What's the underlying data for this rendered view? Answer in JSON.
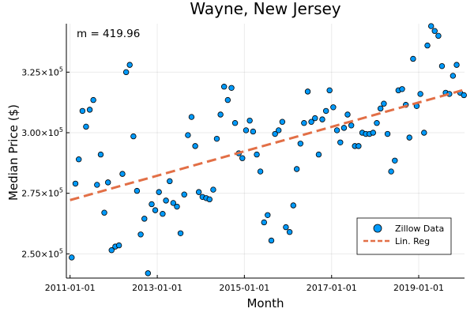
{
  "chart_data": {
    "type": "scatter",
    "title": "Wayne, New Jersey",
    "xlabel": "Month",
    "ylabel": "Median Price ($)",
    "annotation": "m = 419.96",
    "grid": true,
    "legend_position": "bottom-right",
    "xlim": [
      "2010-12-01",
      "2020-01-20"
    ],
    "ylim": [
      240000,
      345000
    ],
    "x_ticks": [
      {
        "date": "2011-01-01",
        "label": "2011-01-01"
      },
      {
        "date": "2013-01-01",
        "label": "2013-01-01"
      },
      {
        "date": "2015-01-01",
        "label": "2015-01-01"
      },
      {
        "date": "2017-01-01",
        "label": "2017-01-01"
      },
      {
        "date": "2019-01-01",
        "label": "2019-01-01"
      }
    ],
    "y_ticks": [
      {
        "value": 250000,
        "mantissa": "2.50",
        "exponent": "5"
      },
      {
        "value": 275000,
        "mantissa": "2.75",
        "exponent": "5"
      },
      {
        "value": 300000,
        "mantissa": "3.00",
        "exponent": "5"
      },
      {
        "value": 325000,
        "mantissa": "3.25",
        "exponent": "5"
      }
    ],
    "tick_times": "×10",
    "series": [
      {
        "name": "Zillow Data",
        "kind": "scatter",
        "color": "#009AFA",
        "points": [
          [
            "2011-01",
            248500
          ],
          [
            "2011-02",
            279000
          ],
          [
            "2011-03",
            289000
          ],
          [
            "2011-04",
            309000
          ],
          [
            "2011-05",
            302500
          ],
          [
            "2011-06",
            309500
          ],
          [
            "2011-07",
            313500
          ],
          [
            "2011-08",
            278500
          ],
          [
            "2011-09",
            291000
          ],
          [
            "2011-10",
            267000
          ],
          [
            "2011-11",
            279500
          ],
          [
            "2011-12",
            251500
          ],
          [
            "2012-01",
            253000
          ],
          [
            "2012-02",
            253500
          ],
          [
            "2012-03",
            283000
          ],
          [
            "2012-04",
            325000
          ],
          [
            "2012-05",
            328000
          ],
          [
            "2012-06",
            298500
          ],
          [
            "2012-07",
            276000
          ],
          [
            "2012-08",
            258000
          ],
          [
            "2012-09",
            264500
          ],
          [
            "2012-10",
            242000
          ],
          [
            "2012-11",
            270500
          ],
          [
            "2012-12",
            268000
          ],
          [
            "2013-01",
            275500
          ],
          [
            "2013-02",
            266500
          ],
          [
            "2013-03",
            272000
          ],
          [
            "2013-04",
            280000
          ],
          [
            "2013-05",
            271000
          ],
          [
            "2013-06",
            269500
          ],
          [
            "2013-07",
            258500
          ],
          [
            "2013-08",
            274500
          ],
          [
            "2013-09",
            299000
          ],
          [
            "2013-10",
            306500
          ],
          [
            "2013-11",
            294500
          ],
          [
            "2013-12",
            275500
          ],
          [
            "2014-01",
            273500
          ],
          [
            "2014-02",
            273000
          ],
          [
            "2014-03",
            272500
          ],
          [
            "2014-04",
            276500
          ],
          [
            "2014-05",
            297500
          ],
          [
            "2014-06",
            307500
          ],
          [
            "2014-07",
            319000
          ],
          [
            "2014-08",
            313500
          ],
          [
            "2014-09",
            318500
          ],
          [
            "2014-10",
            304000
          ],
          [
            "2014-11",
            291500
          ],
          [
            "2014-12",
            289500
          ],
          [
            "2015-01",
            301000
          ],
          [
            "2015-02",
            305000
          ],
          [
            "2015-03",
            300500
          ],
          [
            "2015-04",
            291000
          ],
          [
            "2015-05",
            284000
          ],
          [
            "2015-06",
            263000
          ],
          [
            "2015-07",
            266000
          ],
          [
            "2015-08",
            255500
          ],
          [
            "2015-09",
            299500
          ],
          [
            "2015-10",
            301000
          ],
          [
            "2015-11",
            304500
          ],
          [
            "2015-12",
            261000
          ],
          [
            "2016-01",
            259000
          ],
          [
            "2016-02",
            270000
          ],
          [
            "2016-03",
            285000
          ],
          [
            "2016-04",
            295500
          ],
          [
            "2016-05",
            304000
          ],
          [
            "2016-06",
            317000
          ],
          [
            "2016-07",
            304500
          ],
          [
            "2016-08",
            306000
          ],
          [
            "2016-09",
            291000
          ],
          [
            "2016-10",
            305500
          ],
          [
            "2016-11",
            309000
          ],
          [
            "2016-12",
            317500
          ],
          [
            "2017-01",
            310500
          ],
          [
            "2017-02",
            301000
          ],
          [
            "2017-03",
            296000
          ],
          [
            "2017-04",
            302000
          ],
          [
            "2017-05",
            307500
          ],
          [
            "2017-06",
            303000
          ],
          [
            "2017-07",
            294500
          ],
          [
            "2017-08",
            294500
          ],
          [
            "2017-09",
            300000
          ],
          [
            "2017-10",
            299500
          ],
          [
            "2017-11",
            299500
          ],
          [
            "2017-12",
            300000
          ],
          [
            "2018-01",
            304000
          ],
          [
            "2018-02",
            310000
          ],
          [
            "2018-03",
            312000
          ],
          [
            "2018-04",
            299500
          ],
          [
            "2018-05",
            284000
          ],
          [
            "2018-06",
            288500
          ],
          [
            "2018-07",
            317500
          ],
          [
            "2018-08",
            318000
          ],
          [
            "2018-09",
            311500
          ],
          [
            "2018-10",
            298000
          ],
          [
            "2018-11",
            330500
          ],
          [
            "2018-12",
            311000
          ],
          [
            "2019-01",
            316000
          ],
          [
            "2019-02",
            300000
          ],
          [
            "2019-03",
            336000
          ],
          [
            "2019-04",
            344000
          ],
          [
            "2019-05",
            342000
          ],
          [
            "2019-06",
            340000
          ],
          [
            "2019-07",
            327500
          ],
          [
            "2019-08",
            316500
          ],
          [
            "2019-09",
            316000
          ],
          [
            "2019-10",
            323500
          ],
          [
            "2019-11",
            328000
          ],
          [
            "2019-12",
            316500
          ],
          [
            "2020-01",
            315500
          ]
        ]
      },
      {
        "name": "Lin. Reg",
        "kind": "line",
        "color": "#E26F46",
        "dash": "dashed",
        "points": [
          [
            "2011-01-01",
            272200
          ],
          [
            "2020-01-01",
            317500
          ]
        ]
      }
    ]
  }
}
